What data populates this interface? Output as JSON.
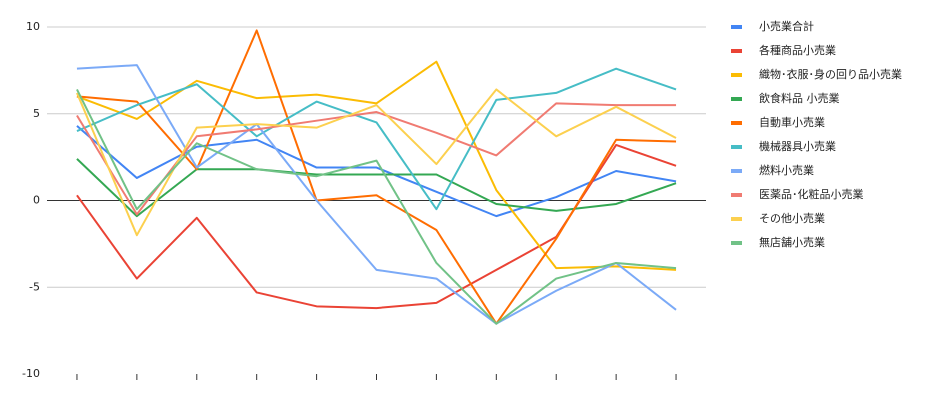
{
  "chart_data": {
    "type": "line",
    "categories": [
      null,
      null,
      null,
      null,
      null,
      null,
      null,
      null,
      null,
      null,
      null
    ],
    "ylim": [
      -10,
      10
    ],
    "yticks": [
      -10,
      -5,
      0,
      5,
      10
    ],
    "grid": true,
    "legend": "right",
    "series": [
      {
        "name": "小売業合計",
        "color": "#4285f4",
        "values": [
          4.3,
          1.3,
          3.1,
          3.5,
          1.9,
          1.9,
          0.5,
          -0.9,
          0.2,
          1.7,
          1.1
        ]
      },
      {
        "name": "各種商品小売業",
        "color": "#ea4335",
        "values": [
          0.3,
          -4.5,
          -1.0,
          -5.3,
          -6.1,
          -6.2,
          -5.9,
          -4.0,
          -2.1,
          3.2,
          2.0
        ]
      },
      {
        "name": "織物･衣服･身の回り品小売業",
        "color": "#fbbc04",
        "values": [
          6.0,
          4.7,
          6.9,
          5.9,
          6.1,
          5.6,
          8.0,
          0.6,
          -3.9,
          -3.8,
          -4.0
        ]
      },
      {
        "name": "飲食料品 小売業",
        "color": "#34a853",
        "values": [
          2.4,
          -0.9,
          1.8,
          1.8,
          1.5,
          1.5,
          1.5,
          -0.2,
          -0.6,
          -0.2,
          1.0
        ]
      },
      {
        "name": "自動車小売業",
        "color": "#ff6d01",
        "values": [
          6.0,
          5.7,
          1.8,
          9.8,
          0.0,
          0.3,
          -1.7,
          -7.1,
          -2.2,
          3.5,
          3.4
        ]
      },
      {
        "name": "機械器具小売業",
        "color": "#46bdc6",
        "values": [
          4.0,
          5.5,
          6.7,
          3.7,
          5.7,
          4.5,
          -0.5,
          5.8,
          6.2,
          7.6,
          6.4
        ]
      },
      {
        "name": "燃料小売業",
        "color": "#7baaf7",
        "values": [
          7.6,
          7.8,
          1.9,
          4.4,
          0.0,
          -4.0,
          -4.5,
          -7.1,
          -5.2,
          -3.6,
          -6.3
        ]
      },
      {
        "name": "医薬品･化粧品小売業",
        "color": "#f07b72",
        "values": [
          4.9,
          -0.8,
          3.7,
          4.1,
          4.6,
          5.1,
          3.9,
          2.6,
          5.6,
          5.5,
          5.5
        ]
      },
      {
        "name": "その他小売業",
        "color": "#fcd04f",
        "values": [
          6.2,
          -2.0,
          4.2,
          4.4,
          4.2,
          5.5,
          2.1,
          6.4,
          3.7,
          5.4,
          3.6
        ]
      },
      {
        "name": "無店舗小売業",
        "color": "#71c287",
        "values": [
          6.4,
          -0.5,
          3.3,
          1.8,
          1.4,
          2.3,
          -3.6,
          -7.1,
          -4.5,
          -3.6,
          -3.9
        ]
      }
    ]
  }
}
